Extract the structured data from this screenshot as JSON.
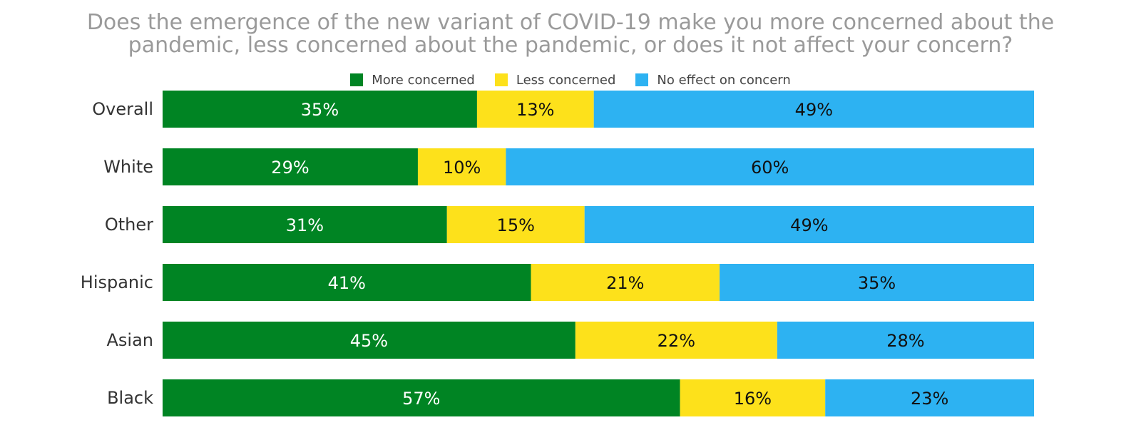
{
  "chart_data": {
    "type": "bar",
    "orientation": "horizontal",
    "stacked": true,
    "title_lines": [
      "Does the emergence of the new variant of COVID-19 make you more concerned about the",
      "pandemic, less concerned about the pandemic, or does it not affect your concern?"
    ],
    "categories": [
      "Overall",
      "White",
      "Other",
      "Hispanic",
      "Asian",
      "Black"
    ],
    "series": [
      {
        "name": "More concerned",
        "color": "#008423",
        "label_color": "#ffffff",
        "values": [
          35,
          29,
          31,
          41,
          45,
          57
        ],
        "labels": [
          "35%",
          "29%",
          "31%",
          "41%",
          "45%",
          "57%"
        ]
      },
      {
        "name": "Less concerned",
        "color": "#fde11b",
        "label_color": "#111111",
        "values": [
          13,
          10,
          15,
          21,
          22,
          16
        ],
        "labels": [
          "13%",
          "10%",
          "15%",
          "21%",
          "22%",
          "16%"
        ]
      },
      {
        "name": "No effect on concern",
        "color": "#2db2f2",
        "label_color": "#111111",
        "values": [
          49,
          60,
          49,
          35,
          28,
          23
        ],
        "labels": [
          "49%",
          "60%",
          "49%",
          "35%",
          "28%",
          "23%"
        ]
      }
    ],
    "legend_position": "top-center",
    "grid": false
  }
}
